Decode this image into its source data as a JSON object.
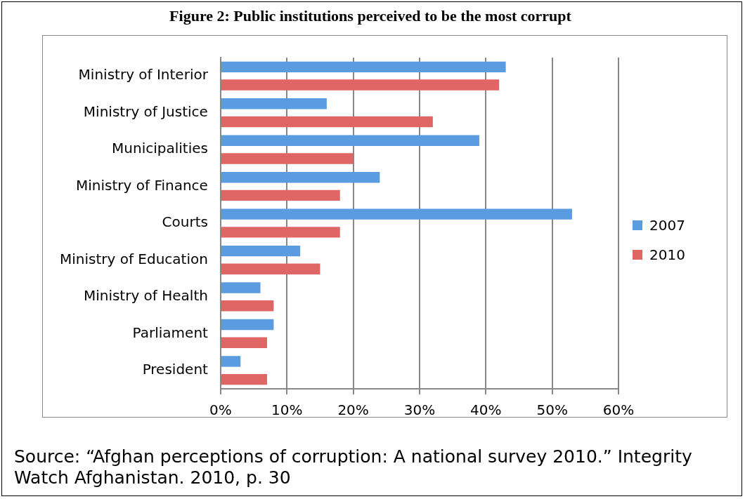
{
  "chart_data": {
    "type": "bar",
    "orientation": "horizontal",
    "title": "Figure 2: Public institutions perceived to be the most corrupt",
    "categories": [
      "Ministry of Interior",
      "Ministry of Justice",
      "Municipalities",
      "Ministry of Finance",
      "Courts",
      "Ministry of Education",
      "Ministry of Health",
      "Parliament",
      "President"
    ],
    "series": [
      {
        "name": "2007",
        "color": "#5b9be0",
        "values": [
          43,
          16,
          39,
          24,
          53,
          12,
          6,
          8,
          3
        ]
      },
      {
        "name": "2010",
        "color": "#e06666",
        "values": [
          42,
          32,
          20,
          18,
          18,
          15,
          8,
          7,
          7
        ]
      }
    ],
    "xlim": [
      0,
      60
    ],
    "xticks": [
      {
        "value": 0,
        "label": "0%"
      },
      {
        "value": 10,
        "label": "10%"
      },
      {
        "value": 20,
        "label": "20%"
      },
      {
        "value": 30,
        "label": "30%"
      },
      {
        "value": 40,
        "label": "40%"
      },
      {
        "value": 50,
        "label": "50%"
      },
      {
        "value": 60,
        "label": "60%"
      }
    ],
    "grid": "x",
    "legend": "right",
    "annotations": [
      "Source: “Afghan perceptions of corruption: A national survey 2010.” Integrity Watch Afghanistan. 2010, p. 30"
    ]
  }
}
